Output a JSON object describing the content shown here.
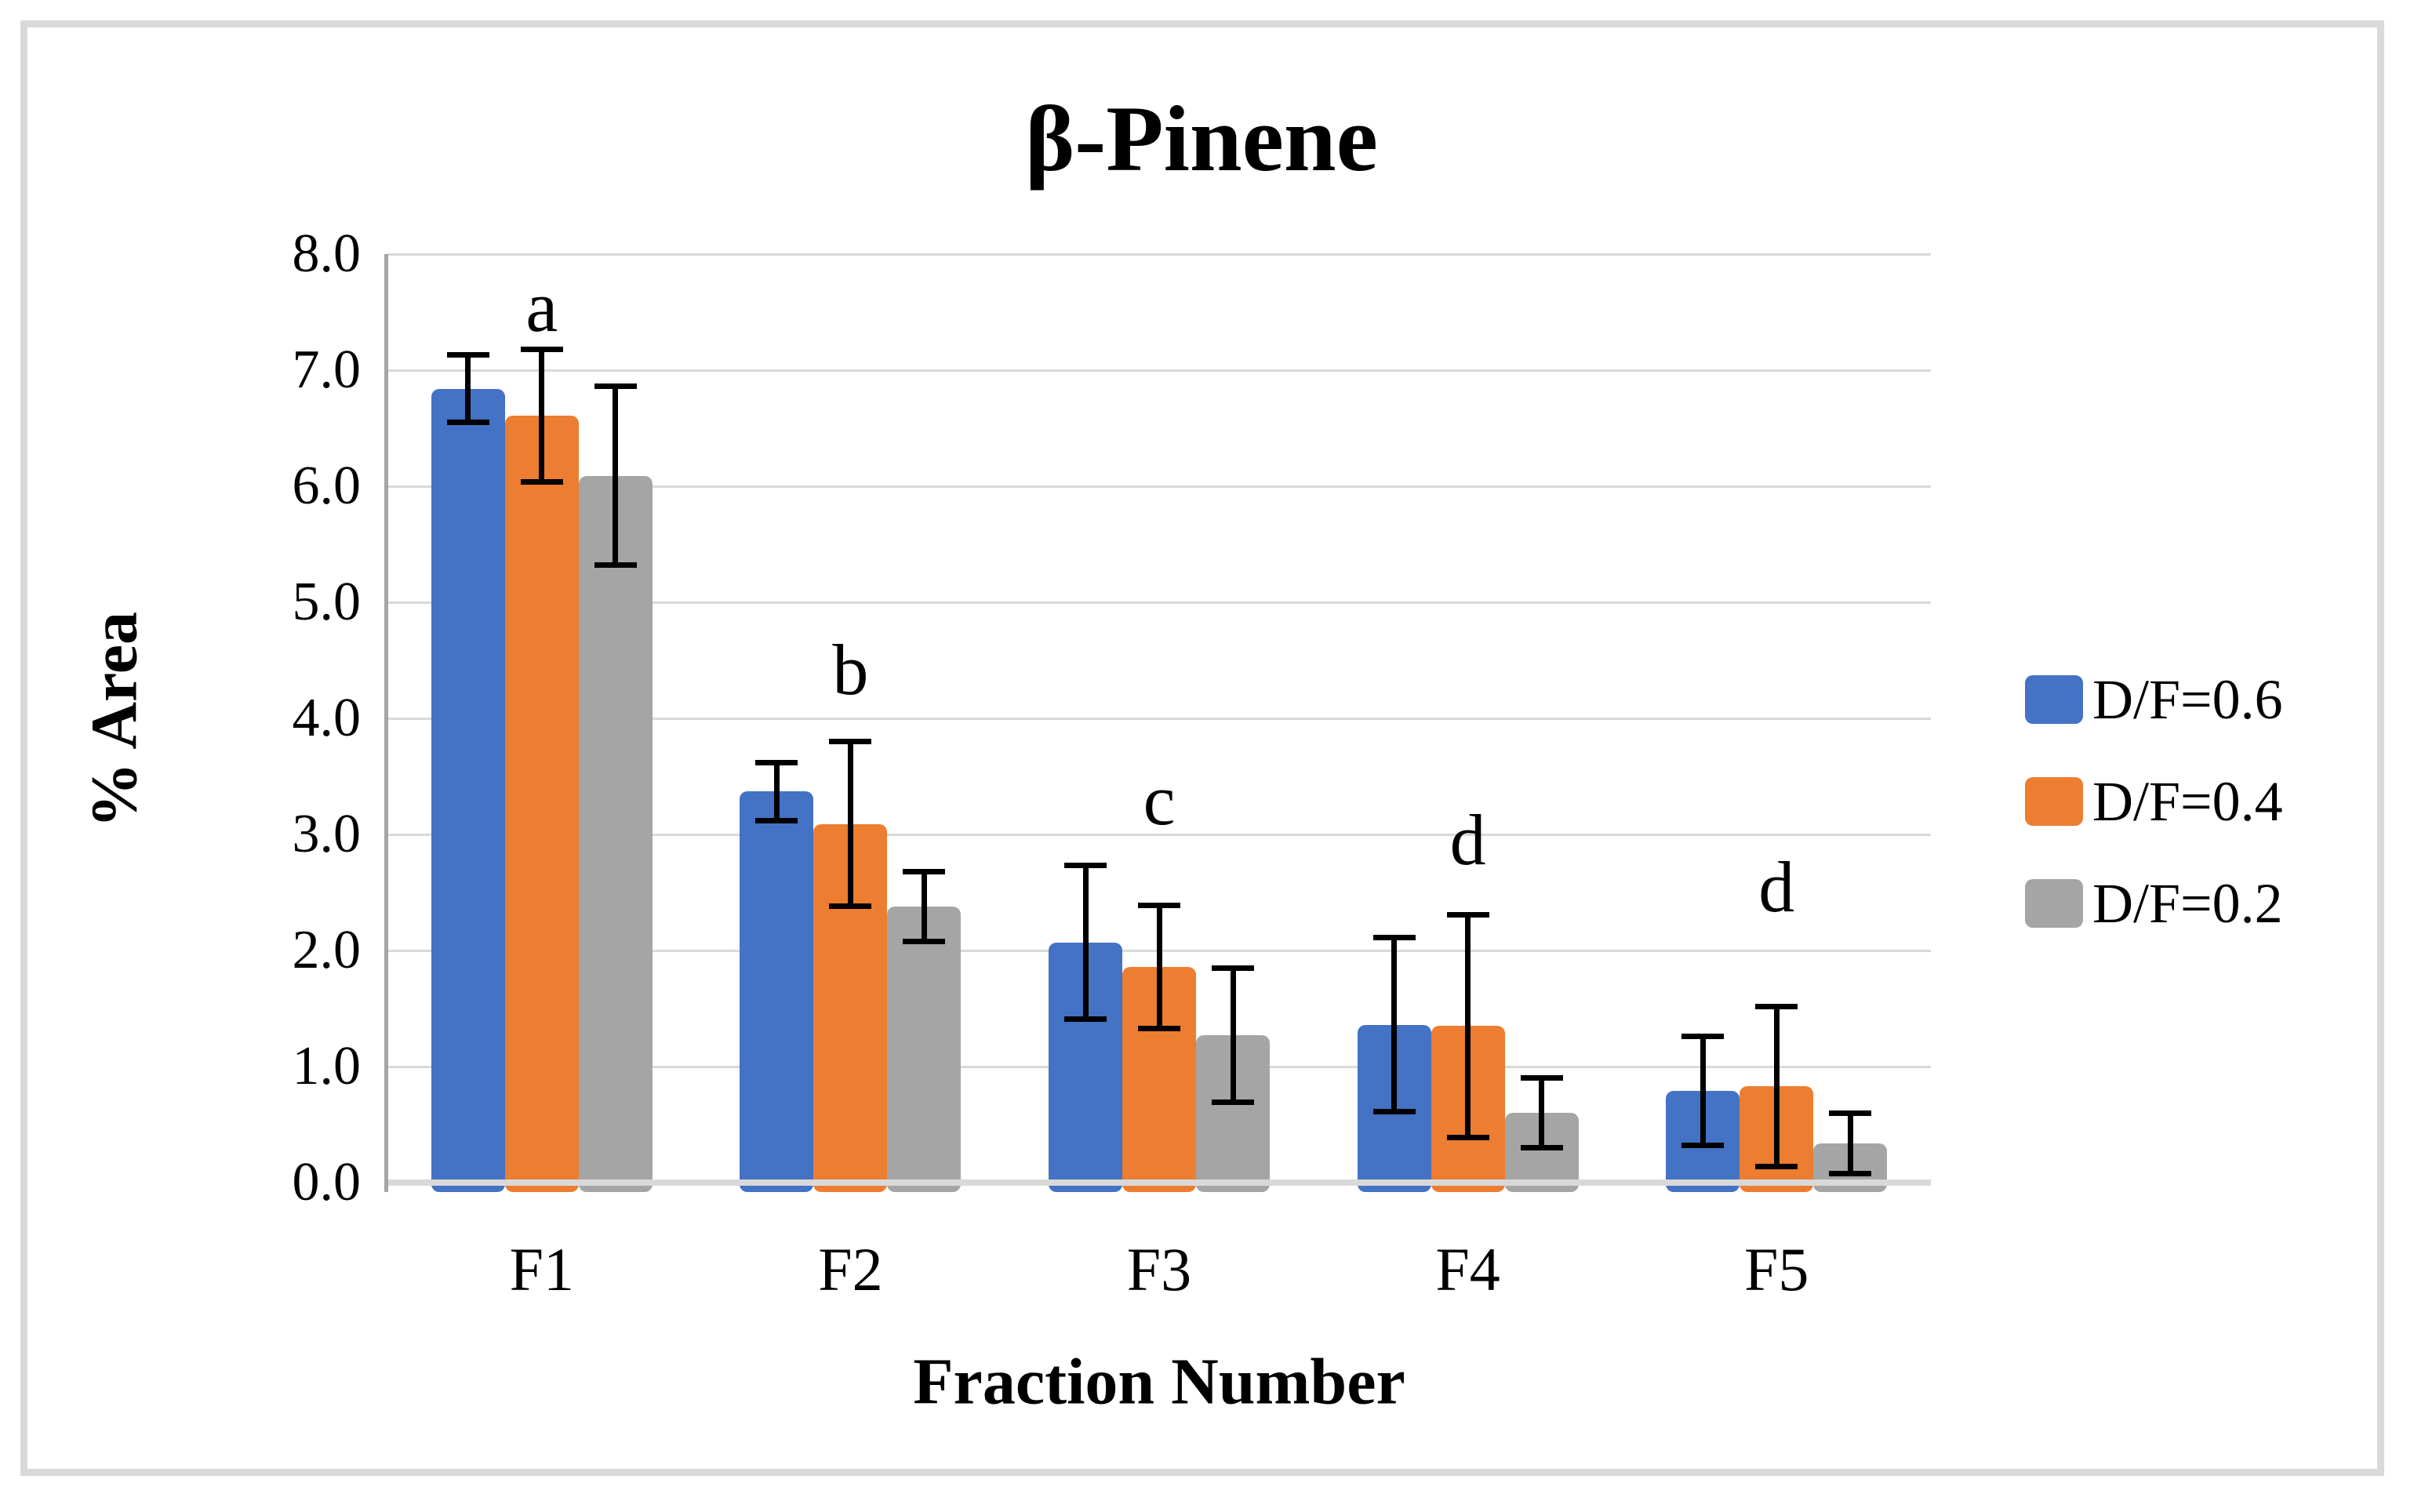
{
  "chart_data": {
    "type": "bar",
    "title": "β-Pinene",
    "xlabel": "Fraction Number",
    "ylabel": "% Area",
    "categories": [
      "F1",
      "F2",
      "F3",
      "F4",
      "F5"
    ],
    "series": [
      {
        "name": "D/F=0.6",
        "color": "#4472C4",
        "values": [
          6.84,
          3.37,
          2.07,
          1.36,
          0.79
        ],
        "errors": [
          0.29,
          0.25,
          0.66,
          0.75,
          0.47
        ]
      },
      {
        "name": "D/F=0.4",
        "color": "#ED7D31",
        "values": [
          6.61,
          3.09,
          1.86,
          1.35,
          0.83
        ],
        "errors": [
          0.57,
          0.71,
          0.53,
          0.96,
          0.69
        ]
      },
      {
        "name": "D/F=0.2",
        "color": "#A5A5A5",
        "values": [
          6.09,
          2.38,
          1.27,
          0.6,
          0.34
        ],
        "errors": [
          0.77,
          0.3,
          0.58,
          0.3,
          0.26
        ]
      }
    ],
    "annotations": [
      {
        "category": "F1",
        "label": "a",
        "y": 7.55
      },
      {
        "category": "F2",
        "label": "b",
        "y": 4.42
      },
      {
        "category": "F3",
        "label": "c",
        "y": 3.3
      },
      {
        "category": "F4",
        "label": "d",
        "y": 2.95
      },
      {
        "category": "F5",
        "label": "d",
        "y": 2.55
      }
    ],
    "ylim": [
      0,
      8
    ],
    "ytick_step": 1,
    "yticks": [
      "0.0",
      "1.0",
      "2.0",
      "3.0",
      "4.0",
      "5.0",
      "6.0",
      "7.0",
      "8.0"
    ],
    "grid": true,
    "error_bars": true,
    "legend_position": "right"
  },
  "legend_rows_y": [
    892,
    1022,
    1152
  ],
  "style": {
    "gridline_color": "#D9D9D9",
    "axis_line_color": "#A6A6A6",
    "frame_border_color": "#D9D9D9",
    "error_bar_color": "#000000",
    "text_color": "#000000",
    "background": "#FFFFFF"
  }
}
